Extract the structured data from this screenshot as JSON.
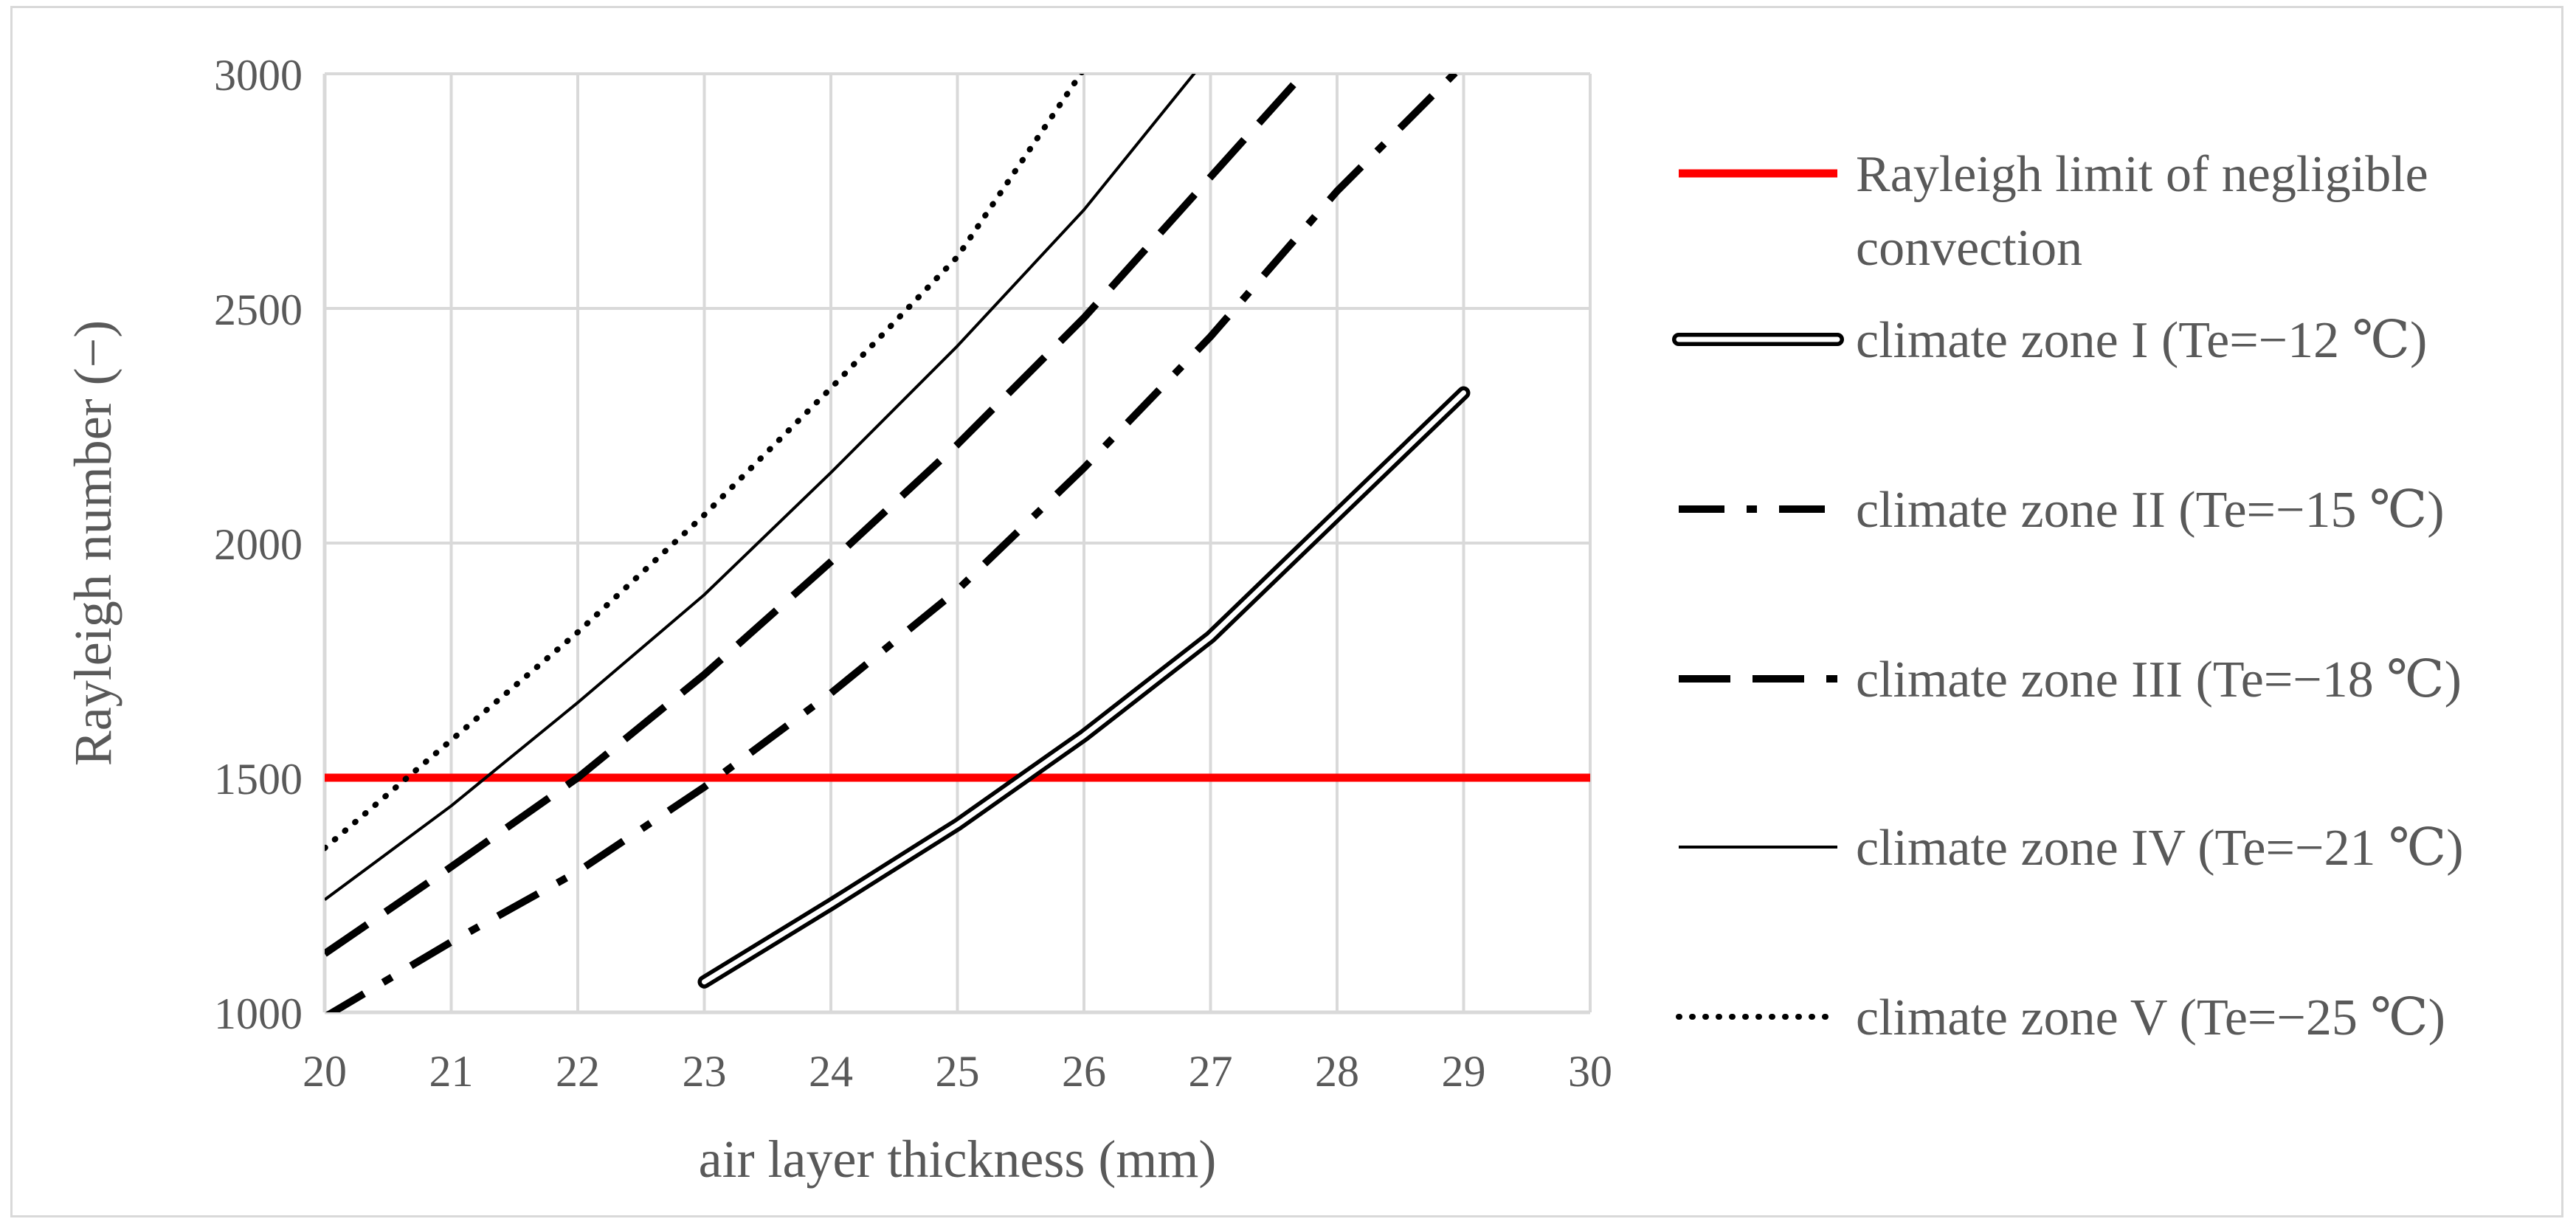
{
  "chart_data": {
    "type": "line",
    "title": "",
    "xlabel": "air layer thickness (mm)",
    "ylabel": "Rayleigh number (−)",
    "xlim": [
      20,
      30
    ],
    "ylim": [
      1000,
      3000
    ],
    "xticks": [
      "20",
      "21",
      "22",
      "23",
      "24",
      "25",
      "26",
      "27",
      "28",
      "29",
      "30"
    ],
    "yticks": [
      "1000",
      "1500",
      "2000",
      "2500",
      "3000"
    ],
    "grid": true,
    "legend_position": "right",
    "series": [
      {
        "name": "Rayleigh limit of negligible convection",
        "legend_lines": [
          "Rayleigh limit of negligible",
          "convection"
        ],
        "style": "solid-red",
        "color": "#ff0000",
        "x": [
          20,
          30
        ],
        "y": [
          1500,
          1500
        ]
      },
      {
        "name": "climate zone I (Te=−12 ℃)",
        "style": "double",
        "color": "#000000",
        "x": [
          23,
          24,
          25,
          26,
          27,
          28,
          29
        ],
        "y": [
          1065,
          1230,
          1400,
          1590,
          1800,
          2060,
          2320
        ]
      },
      {
        "name": "climate zone II (Te=−15 ℃)",
        "style": "dash-dot",
        "color": "#000000",
        "x": [
          20,
          21,
          22,
          23,
          24,
          25,
          26,
          27,
          28,
          29
        ],
        "y": [
          990,
          1150,
          1300,
          1480,
          1680,
          1900,
          2160,
          2440,
          2750,
          3020
        ]
      },
      {
        "name": "climate zone III (Te=−18 ℃)",
        "style": "long-dash",
        "color": "#000000",
        "x": [
          20,
          21,
          22,
          23,
          24,
          25,
          26,
          27,
          27.8
        ],
        "y": [
          1125,
          1310,
          1500,
          1720,
          1960,
          2210,
          2480,
          2780,
          3020
        ]
      },
      {
        "name": "climate zone IV (Te=−21 ℃)",
        "style": "thin",
        "color": "#000000",
        "x": [
          20,
          21,
          22,
          23,
          24,
          25,
          26,
          26.9
        ],
        "y": [
          1240,
          1440,
          1660,
          1890,
          2150,
          2420,
          2710,
          3010
        ]
      },
      {
        "name": "climate zone V (Te=−25 ℃)",
        "style": "dotted",
        "color": "#000000",
        "x": [
          20,
          21,
          22,
          23,
          24,
          25,
          26
        ],
        "y": [
          1350,
          1580,
          1810,
          2060,
          2330,
          2610,
          3010
        ]
      }
    ]
  }
}
